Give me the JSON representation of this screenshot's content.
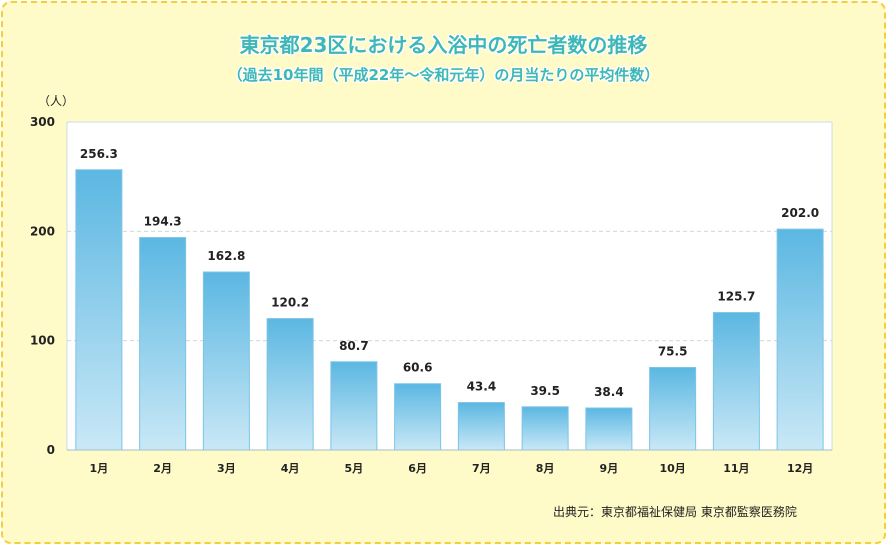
{
  "chart_data": {
    "type": "bar",
    "title": "東京都23区における入浴中の死亡者数の推移",
    "subtitle": "（過去10年間（平成22年～令和元年）の月当たりの平均件数）",
    "ylabel": "（人）",
    "xlabel": "",
    "categories": [
      "1月",
      "2月",
      "3月",
      "4月",
      "5月",
      "6月",
      "7月",
      "8月",
      "9月",
      "10月",
      "11月",
      "12月"
    ],
    "values": [
      256.3,
      194.3,
      162.8,
      120.2,
      80.7,
      60.6,
      43.4,
      39.5,
      38.4,
      75.5,
      125.7,
      202.0
    ],
    "value_labels": [
      "256.3",
      "194.3",
      "162.8",
      "120.2",
      "80.7",
      "60.6",
      "43.4",
      "39.5",
      "38.4",
      "75.5",
      "125.7",
      "202.0"
    ],
    "ylim": [
      0,
      300
    ],
    "yticks": [
      0,
      100,
      200,
      300
    ],
    "ytick_labels": [
      "0",
      "100",
      "200",
      "300"
    ],
    "grid": true,
    "colors": {
      "bar_top": "#5bb7e2",
      "bar_bottom": "#c9e8f6",
      "title": "#3fb7b8"
    },
    "source": "出典元：東京都福祉保健局 東京都監察医務院"
  }
}
